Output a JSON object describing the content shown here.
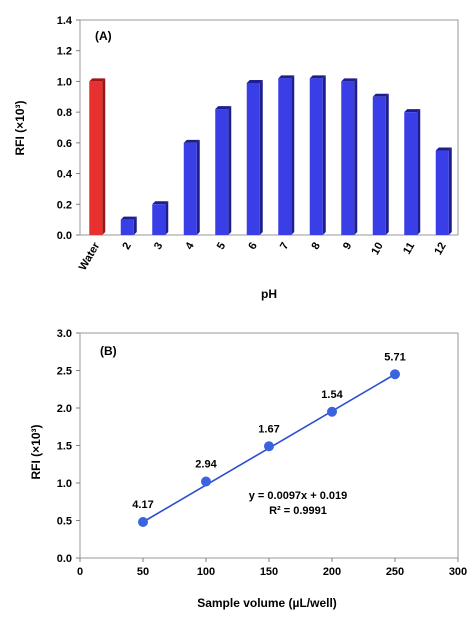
{
  "colors": {
    "water_bar": "#e8312e",
    "water_bar_side": "#9d1616",
    "ph_bar": "#3a3ee6",
    "ph_bar_side": "#1e1f8c",
    "line": "#2c4fcf",
    "point": "#3a63e0",
    "axis": "#7f7f7f"
  },
  "chart_data": [
    {
      "type": "bar",
      "panel_label": "(A)",
      "ylabel": "RFI (×10³)",
      "xlabel": "pH",
      "ylim": [
        0,
        1.4
      ],
      "yticks": [
        "0.0",
        "0.2",
        "0.4",
        "0.6",
        "0.8",
        "1.0",
        "1.2",
        "1.4"
      ],
      "grid": false,
      "categories": [
        "Water",
        "2",
        "3",
        "4",
        "5",
        "6",
        "7",
        "8",
        "9",
        "10",
        "11",
        "12"
      ],
      "values": [
        1.0,
        0.1,
        0.2,
        0.6,
        0.82,
        0.99,
        1.02,
        1.02,
        1.0,
        0.9,
        0.8,
        0.55
      ]
    },
    {
      "type": "scatter",
      "panel_label": "(B)",
      "ylabel": "RFI (×10³)",
      "xlabel": "Sample volume (µL/well)",
      "xlim": [
        0,
        300
      ],
      "ylim": [
        0,
        3.0
      ],
      "xticks": [
        "0",
        "50",
        "100",
        "150",
        "200",
        "250",
        "300"
      ],
      "yticks": [
        "0.0",
        "0.5",
        "1.0",
        "1.5",
        "2.0",
        "2.5",
        "3.0"
      ],
      "grid": false,
      "x": [
        50,
        100,
        150,
        200,
        250
      ],
      "y": [
        0.48,
        1.02,
        1.49,
        1.95,
        2.45
      ],
      "point_labels": [
        "4.17",
        "2.94",
        "1.67",
        "1.54",
        "5.71"
      ],
      "fit_line": true,
      "equation": "y = 0.0097x + 0.019",
      "r_squared": "R² = 0.9991"
    }
  ]
}
